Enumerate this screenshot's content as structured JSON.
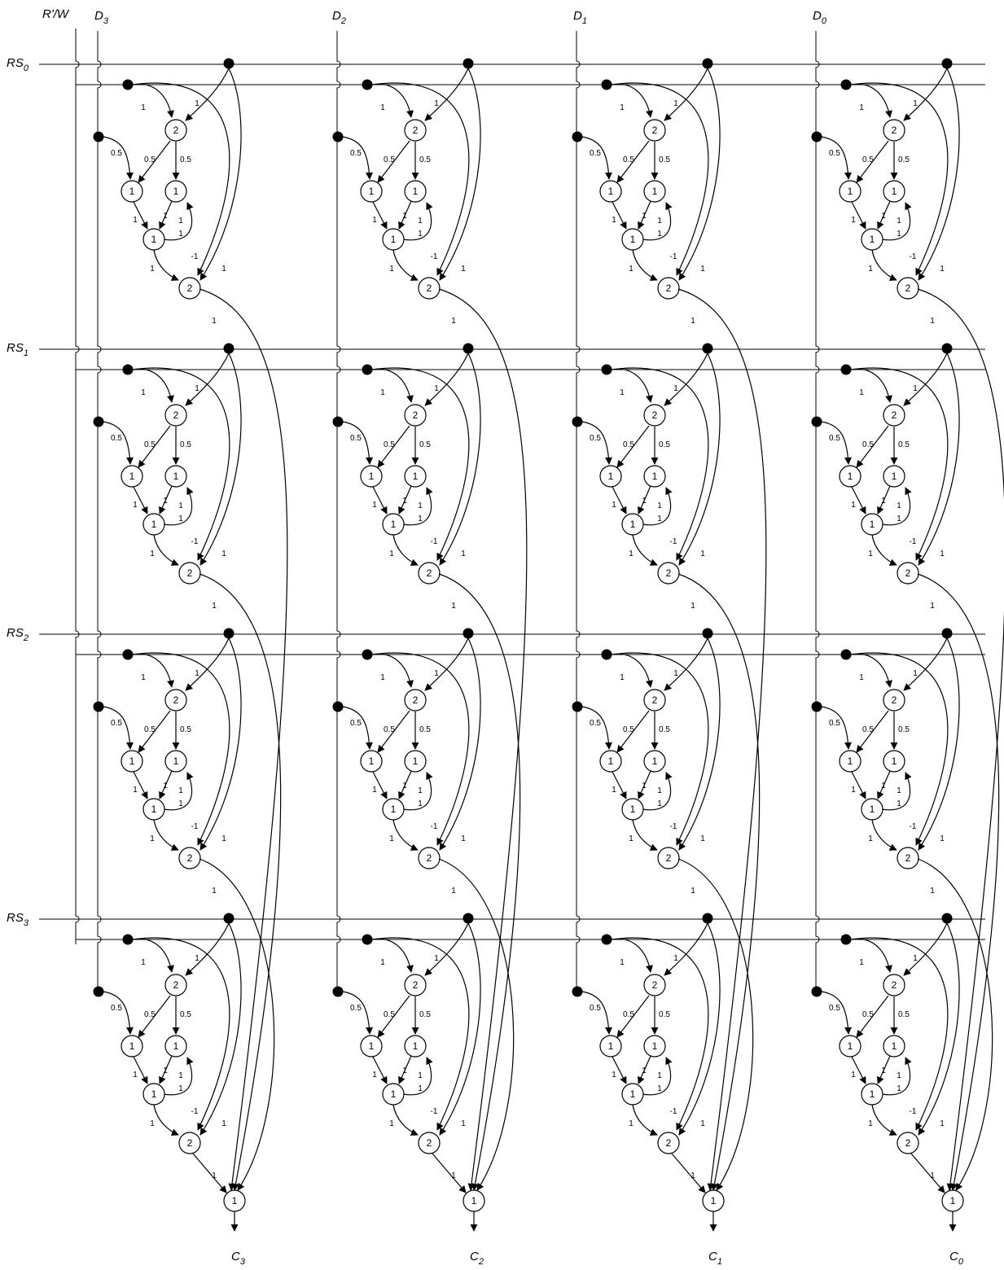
{
  "signals": {
    "rw": "R'/W",
    "columns": [
      {
        "base": "D",
        "sub": "3"
      },
      {
        "base": "D",
        "sub": "2"
      },
      {
        "base": "D",
        "sub": "1"
      },
      {
        "base": "D",
        "sub": "0"
      }
    ],
    "rows": [
      {
        "base": "RS",
        "sub": "0"
      },
      {
        "base": "RS",
        "sub": "1"
      },
      {
        "base": "RS",
        "sub": "2"
      },
      {
        "base": "RS",
        "sub": "3"
      }
    ],
    "outputs": [
      {
        "base": "C",
        "sub": "3"
      },
      {
        "base": "C",
        "sub": "2"
      },
      {
        "base": "C",
        "sub": "1"
      },
      {
        "base": "C",
        "sub": "0"
      }
    ]
  },
  "cell": {
    "nodes": {
      "top": "2",
      "left": "1",
      "right": "1",
      "mid": "1",
      "out": "2"
    },
    "weights": {
      "ctrl_to_top": "1",
      "row_to_top": "1",
      "data_to_left": "0.5",
      "top_to_left": "0.5",
      "top_to_right": "0.5",
      "left_to_mid": "1",
      "right_to_mid": "1",
      "mid_to_right": "1",
      "mid_to_out": "1",
      "ctrl_to_out": "-1",
      "row_to_out": "1",
      "out_to_column": "1"
    }
  },
  "column_node": "1"
}
